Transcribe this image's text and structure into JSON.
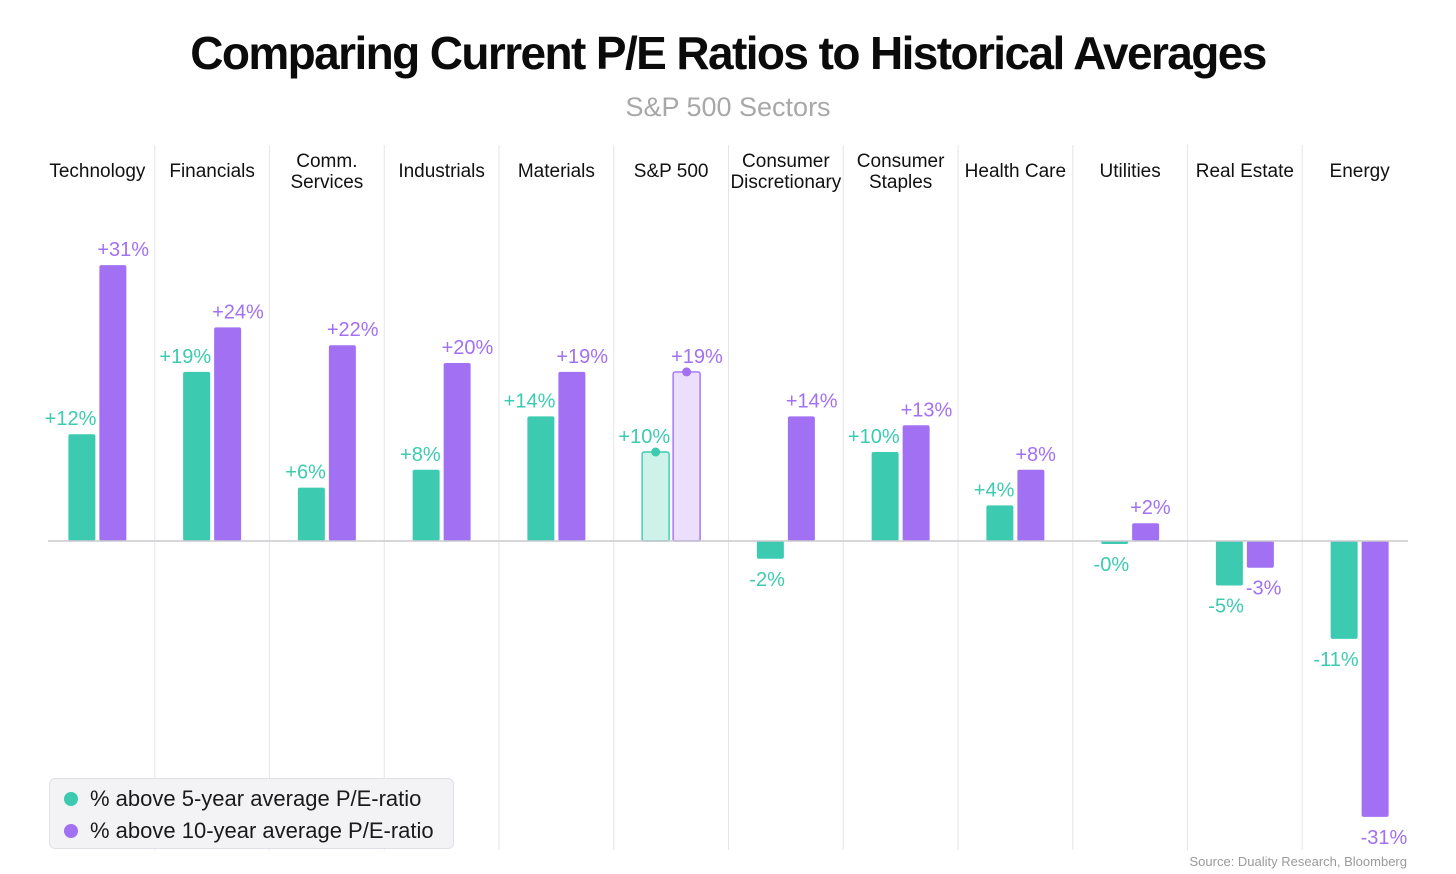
{
  "chart_data": {
    "type": "bar",
    "title": "Comparing Current P/E Ratios to Historical Averages",
    "subtitle": "S&P 500 Sectors",
    "categories": [
      [
        "Technology"
      ],
      [
        "Financials"
      ],
      [
        "Comm.",
        "Services"
      ],
      [
        "Industrials"
      ],
      [
        "Materials"
      ],
      [
        "S&P 500"
      ],
      [
        "Consumer",
        "Discretionary"
      ],
      [
        "Consumer",
        "Staples"
      ],
      [
        "Health Care"
      ],
      [
        "Utilities"
      ],
      [
        "Real Estate"
      ],
      [
        "Energy"
      ]
    ],
    "series": [
      {
        "name": "% above 5-year average P/E-ratio",
        "color": "#3ccbb0",
        "values": [
          12,
          19,
          6,
          8,
          14,
          10,
          -2,
          10,
          4,
          -0.3,
          -5,
          -11
        ],
        "labels": [
          "+12%",
          "+19%",
          "+6%",
          "+8%",
          "+14%",
          "+10%",
          "-2%",
          "+10%",
          "+4%",
          "-0%",
          "-5%",
          "-11%"
        ]
      },
      {
        "name": "% above 10-year average P/E-ratio",
        "color": "#a270f2",
        "values": [
          31,
          24,
          22,
          20,
          19,
          19,
          14,
          13,
          8,
          2,
          -3,
          -31
        ],
        "labels": [
          "+31%",
          "+24%",
          "+22%",
          "+20%",
          "+19%",
          "+19%",
          "+14%",
          "+13%",
          "+8%",
          "+2%",
          "-3%",
          "-31%"
        ]
      }
    ],
    "highlight": {
      "category": "S&P 500",
      "colors": [
        "#cdf2ea",
        "#ebdffd"
      ]
    },
    "ylim": [
      -31,
      31
    ],
    "grid": true,
    "legend_position": "bottom-left"
  },
  "source": "Source: Duality Research, Bloomberg"
}
